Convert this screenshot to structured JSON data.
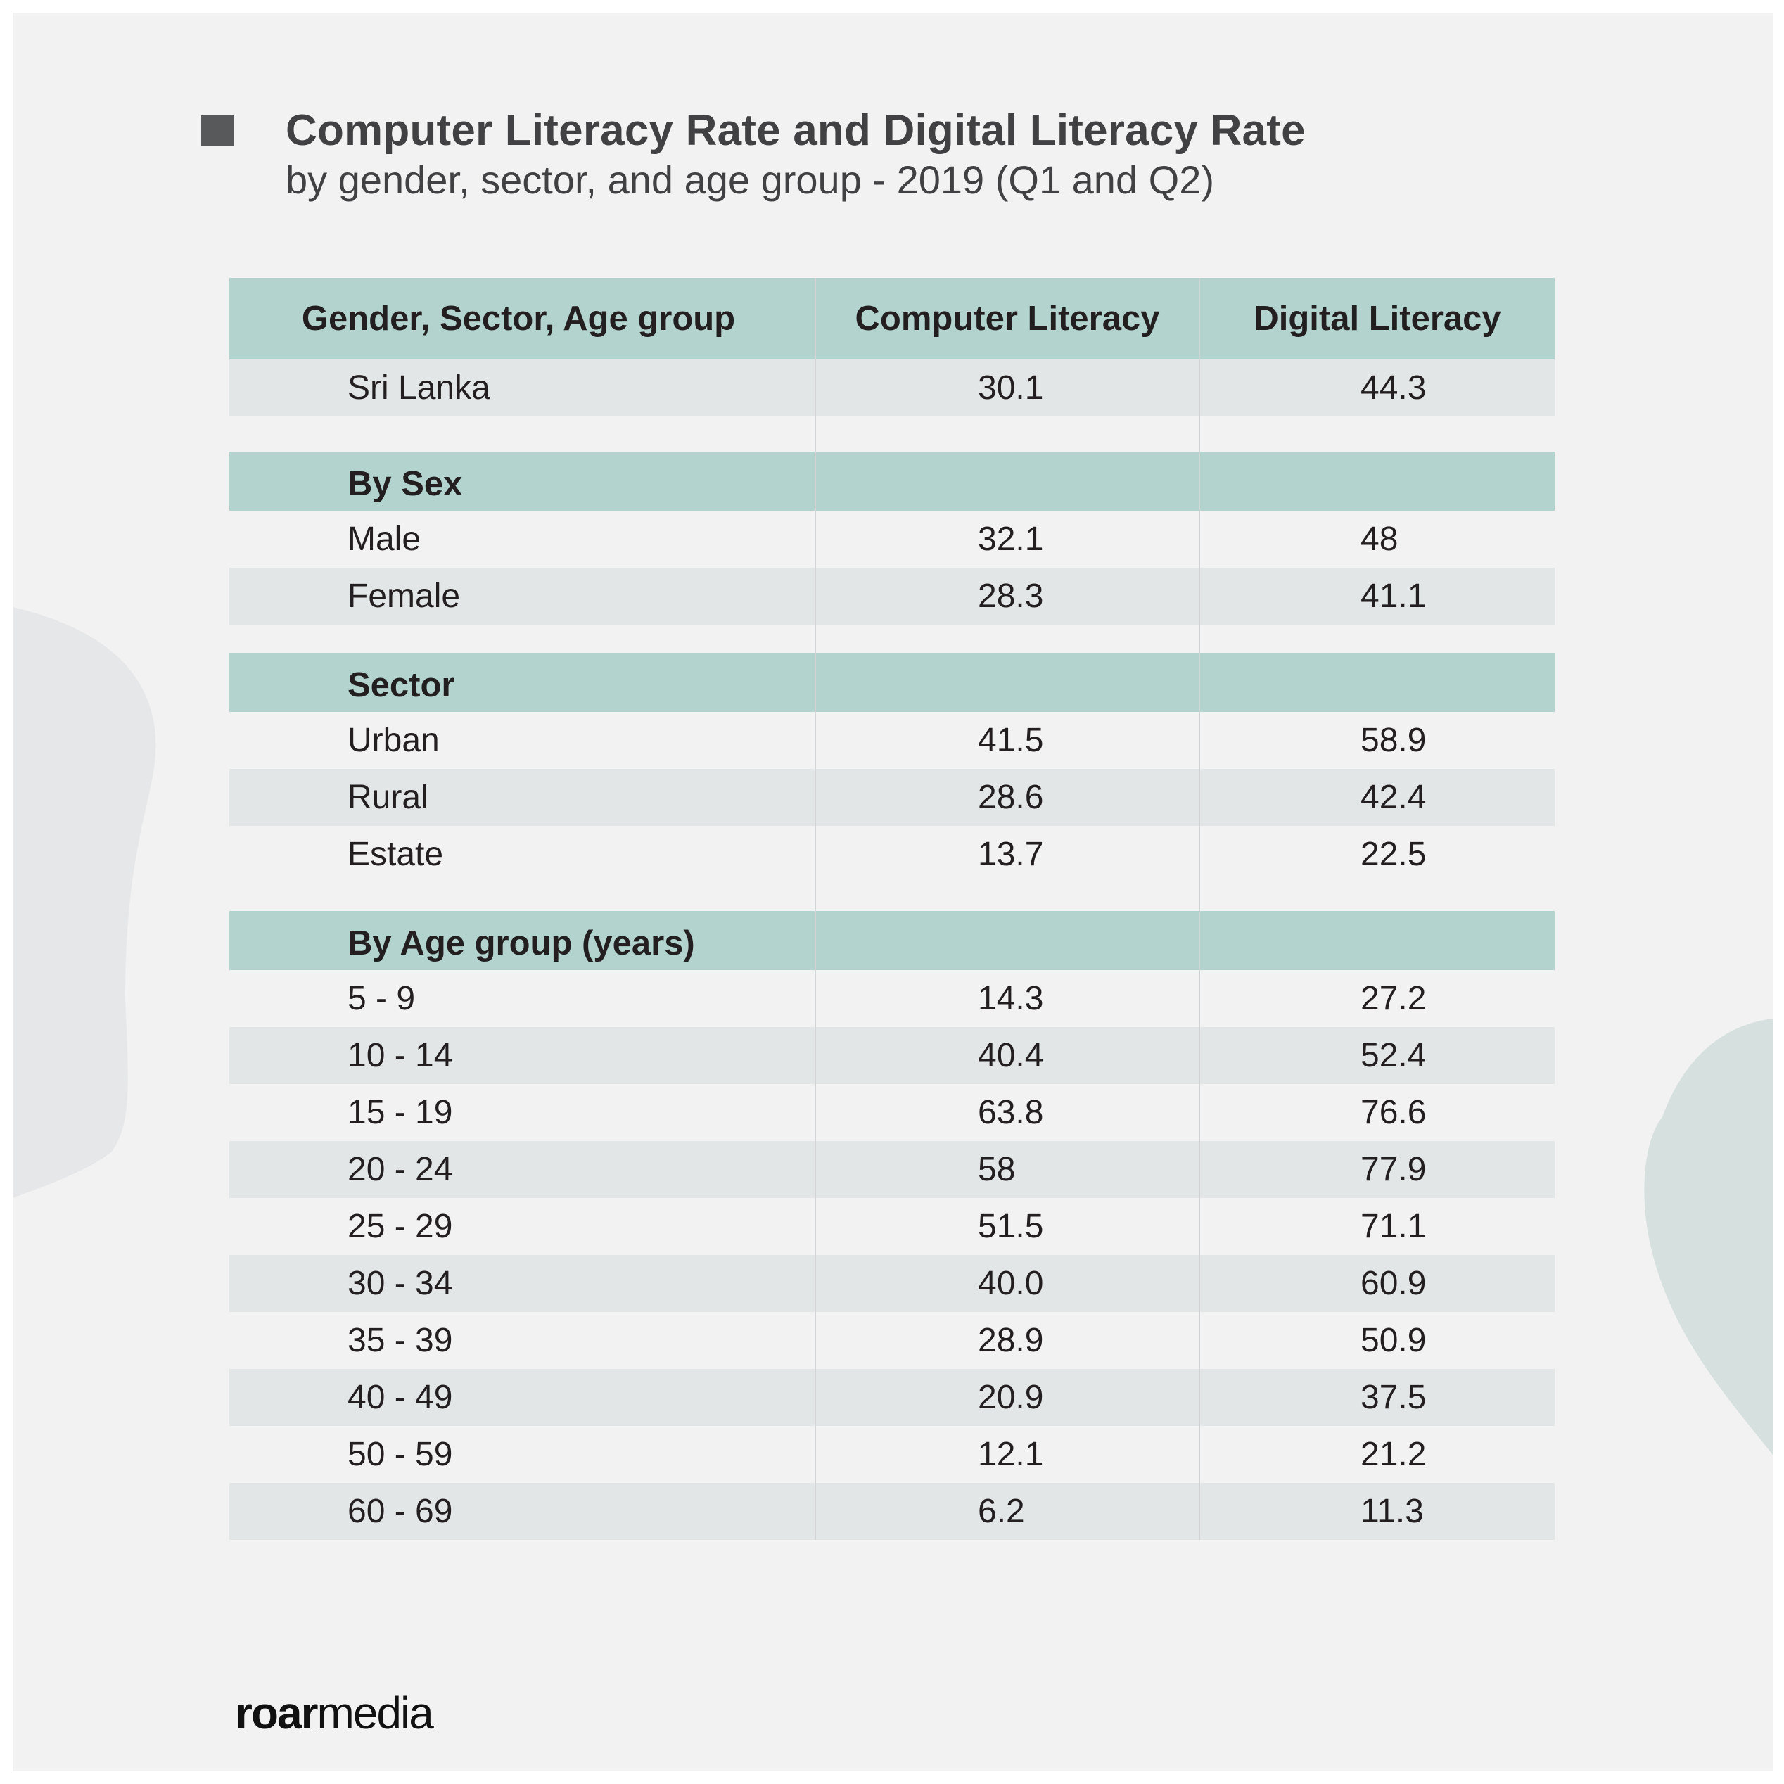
{
  "title": "Computer Literacy Rate and Digital Literacy Rate",
  "subtitle": "by gender, sector, and age group - 2019 (Q1 and Q2)",
  "logo": {
    "part1": "roar",
    "part2": "media"
  },
  "colors": {
    "header_bg": "#b3d3cf",
    "row_shade": "#e3e6e6",
    "background": "#f2f2f2",
    "text": "#231f20"
  },
  "chart_data": {
    "type": "table",
    "columns": [
      "Gender, Sector, Age group",
      "Computer Literacy",
      "Digital Literacy"
    ],
    "rows": [
      {
        "kind": "data",
        "label": "Sri Lanka",
        "computer": "30.1",
        "digital": "44.3"
      },
      {
        "kind": "spacer"
      },
      {
        "kind": "section",
        "label": "By Sex"
      },
      {
        "kind": "data",
        "label": "Male",
        "computer": "32.1",
        "digital": "48"
      },
      {
        "kind": "data",
        "label": "Female",
        "computer": "28.3",
        "digital": "41.1"
      },
      {
        "kind": "spacer"
      },
      {
        "kind": "section",
        "label": "Sector"
      },
      {
        "kind": "data",
        "label": "Urban",
        "computer": "41.5",
        "digital": "58.9"
      },
      {
        "kind": "data",
        "label": "Rural",
        "computer": "28.6",
        "digital": "42.4"
      },
      {
        "kind": "data",
        "label": "Estate",
        "computer": "13.7",
        "digital": "22.5"
      },
      {
        "kind": "spacer"
      },
      {
        "kind": "section",
        "label": "By Age group (years)"
      },
      {
        "kind": "data",
        "label": "5 - 9",
        "computer": "14.3",
        "digital": "27.2"
      },
      {
        "kind": "data",
        "label": "10 - 14",
        "computer": "40.4",
        "digital": "52.4"
      },
      {
        "kind": "data",
        "label": "15 - 19",
        "computer": "63.8",
        "digital": "76.6"
      },
      {
        "kind": "data",
        "label": "20 - 24",
        "computer": "58",
        "digital": "77.9"
      },
      {
        "kind": "data",
        "label": "25 - 29",
        "computer": "51.5",
        "digital": "71.1"
      },
      {
        "kind": "data",
        "label": "30 - 34",
        "computer": "40.0",
        "digital": "60.9"
      },
      {
        "kind": "data",
        "label": "35 - 39",
        "computer": "28.9",
        "digital": "50.9"
      },
      {
        "kind": "data",
        "label": "40 - 49",
        "computer": "20.9",
        "digital": "37.5"
      },
      {
        "kind": "data",
        "label": "50 - 59",
        "computer": "12.1",
        "digital": "21.2"
      },
      {
        "kind": "data",
        "label": "60 - 69",
        "computer": "6.2",
        "digital": "11.3"
      }
    ]
  }
}
